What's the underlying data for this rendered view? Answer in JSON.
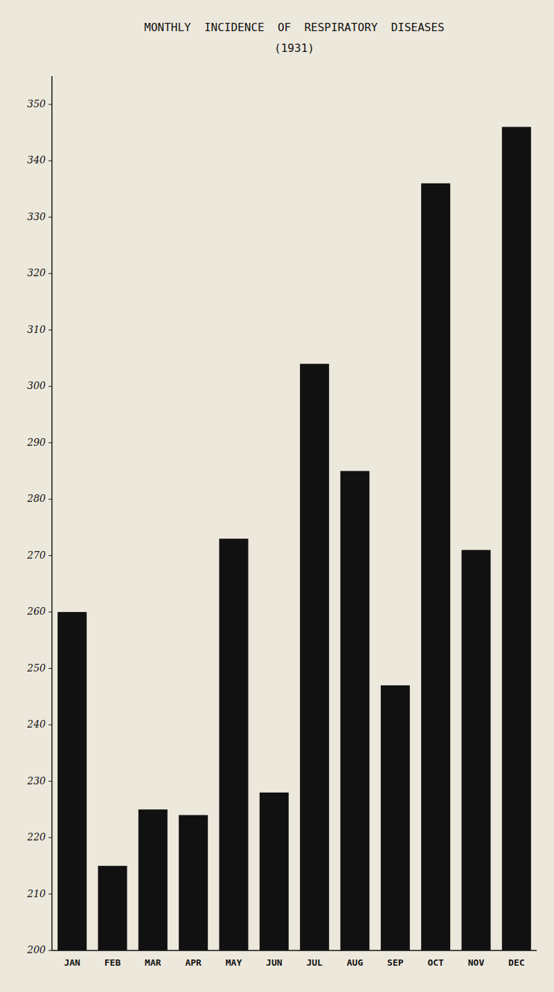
{
  "chart_data": {
    "type": "bar",
    "title": "MONTHLY  INCIDENCE  OF  RESPIRATORY  DISEASES",
    "subtitle": "(1931)",
    "categories": [
      "JAN",
      "FEB",
      "MAR",
      "APR",
      "MAY",
      "JUN",
      "JUL",
      "AUG",
      "SEP",
      "OCT",
      "NOV",
      "DEC"
    ],
    "values": [
      260,
      215,
      225,
      224,
      273,
      228,
      304,
      285,
      247,
      336,
      271,
      346
    ],
    "color": "#111111",
    "ylim": [
      200,
      355
    ],
    "yticks": [
      200,
      210,
      220,
      230,
      240,
      250,
      260,
      270,
      280,
      290,
      300,
      310,
      320,
      330,
      340,
      350
    ],
    "grid": false
  }
}
